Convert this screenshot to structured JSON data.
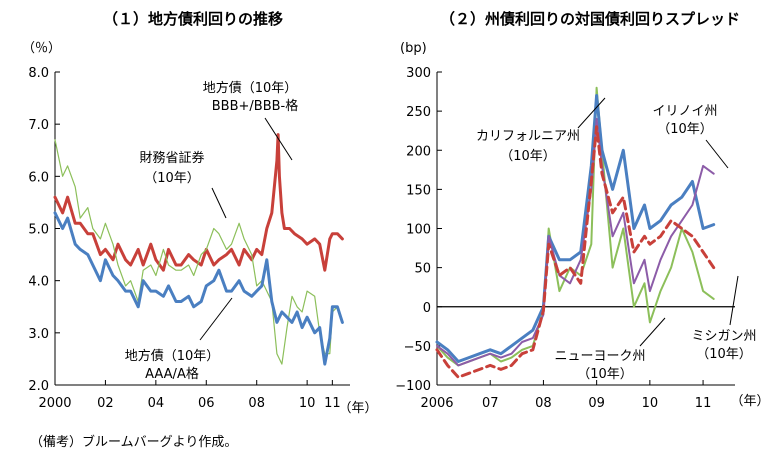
{
  "note": "（備考）ブルームバーグより作成。",
  "chart_data": [
    {
      "type": "line",
      "title": "（１）地方債利回りの推移",
      "ylabel": "（％）",
      "xunit": "（年）",
      "ylim": [
        2.0,
        8.0
      ],
      "xlim": [
        2000.0,
        2011.7
      ],
      "yticks": [
        "2.0",
        "3.0",
        "4.0",
        "5.0",
        "6.0",
        "7.0",
        "8.0"
      ],
      "xticks": [
        {
          "value": 2000,
          "label": "2000"
        },
        {
          "value": 2002,
          "label": "02"
        },
        {
          "value": 2004,
          "label": "04"
        },
        {
          "value": 2006,
          "label": "06"
        },
        {
          "value": 2008,
          "label": "08"
        },
        {
          "value": 2010,
          "label": "10"
        },
        {
          "value": 2011,
          "label": "11"
        }
      ],
      "grid": false,
      "series": [
        {
          "name": "地方債（10年）BBB+/BBB-格",
          "color": "#c8403a",
          "width": 3,
          "x": [
            2000.0,
            2000.3,
            2000.5,
            2000.8,
            2001.0,
            2001.3,
            2001.5,
            2001.8,
            2002.0,
            2002.3,
            2002.5,
            2002.8,
            2003.0,
            2003.3,
            2003.5,
            2003.8,
            2004.0,
            2004.3,
            2004.5,
            2004.8,
            2005.0,
            2005.3,
            2005.5,
            2005.8,
            2006.0,
            2006.3,
            2006.5,
            2006.8,
            2007.0,
            2007.3,
            2007.5,
            2007.8,
            2008.0,
            2008.2,
            2008.4,
            2008.6,
            2008.8,
            2008.85,
            2008.9,
            2009.0,
            2009.1,
            2009.3,
            2009.5,
            2009.8,
            2010.0,
            2010.3,
            2010.5,
            2010.7,
            2010.9,
            2011.0,
            2011.2,
            2011.4
          ],
          "y": [
            5.6,
            5.3,
            5.6,
            5.1,
            5.1,
            4.9,
            4.9,
            4.5,
            4.6,
            4.4,
            4.7,
            4.4,
            4.3,
            4.6,
            4.3,
            4.7,
            4.4,
            4.2,
            4.6,
            4.3,
            4.3,
            4.5,
            4.4,
            4.3,
            4.6,
            4.3,
            4.4,
            4.5,
            4.6,
            4.3,
            4.6,
            4.4,
            4.6,
            4.5,
            5.0,
            5.3,
            6.3,
            6.8,
            6.0,
            5.3,
            5.0,
            5.0,
            4.9,
            4.8,
            4.7,
            4.8,
            4.7,
            4.2,
            4.8,
            4.9,
            4.9,
            4.8
          ]
        },
        {
          "name": "財務省証券（10年）",
          "color": "#8cbf5a",
          "width": 1.2,
          "x": [
            2000.0,
            2000.3,
            2000.5,
            2000.8,
            2001.0,
            2001.3,
            2001.5,
            2001.8,
            2002.0,
            2002.3,
            2002.5,
            2002.8,
            2003.0,
            2003.3,
            2003.5,
            2003.8,
            2004.0,
            2004.3,
            2004.5,
            2004.8,
            2005.0,
            2005.3,
            2005.5,
            2005.8,
            2006.0,
            2006.3,
            2006.5,
            2006.8,
            2007.0,
            2007.3,
            2007.5,
            2007.8,
            2008.0,
            2008.2,
            2008.4,
            2008.6,
            2008.8,
            2009.0,
            2009.2,
            2009.4,
            2009.6,
            2009.8,
            2010.0,
            2010.3,
            2010.5,
            2010.7,
            2010.9,
            2011.0,
            2011.2,
            2011.4
          ],
          "y": [
            6.7,
            6.0,
            6.2,
            5.8,
            5.2,
            5.4,
            5.0,
            4.8,
            5.1,
            4.7,
            4.3,
            3.9,
            4.0,
            3.6,
            4.2,
            4.3,
            4.1,
            4.6,
            4.3,
            4.2,
            4.2,
            4.3,
            4.1,
            4.5,
            4.6,
            5.0,
            4.9,
            4.6,
            4.7,
            5.1,
            4.8,
            4.5,
            3.9,
            4.0,
            3.8,
            3.6,
            2.6,
            2.4,
            3.1,
            3.7,
            3.5,
            3.4,
            3.8,
            3.7,
            3.0,
            2.6,
            2.6,
            3.4,
            3.5,
            3.2
          ]
        },
        {
          "name": "地方債（10年）AAA/A格",
          "color": "#4a7fc1",
          "width": 3,
          "x": [
            2000.0,
            2000.3,
            2000.5,
            2000.8,
            2001.0,
            2001.3,
            2001.5,
            2001.8,
            2002.0,
            2002.3,
            2002.5,
            2002.8,
            2003.0,
            2003.3,
            2003.5,
            2003.8,
            2004.0,
            2004.3,
            2004.5,
            2004.8,
            2005.0,
            2005.3,
            2005.5,
            2005.8,
            2006.0,
            2006.3,
            2006.5,
            2006.8,
            2007.0,
            2007.3,
            2007.5,
            2007.8,
            2008.0,
            2008.2,
            2008.4,
            2008.6,
            2008.8,
            2009.0,
            2009.2,
            2009.4,
            2009.6,
            2009.8,
            2010.0,
            2010.3,
            2010.5,
            2010.7,
            2010.9,
            2011.0,
            2011.2,
            2011.4
          ],
          "y": [
            5.3,
            5.0,
            5.2,
            4.7,
            4.6,
            4.5,
            4.3,
            4.0,
            4.4,
            4.1,
            4.0,
            3.8,
            3.8,
            3.5,
            4.0,
            3.8,
            3.8,
            3.7,
            3.9,
            3.6,
            3.6,
            3.7,
            3.5,
            3.6,
            3.9,
            4.0,
            4.2,
            3.8,
            3.8,
            4.0,
            3.8,
            3.7,
            3.8,
            3.9,
            4.4,
            3.6,
            3.2,
            3.4,
            3.3,
            3.2,
            3.4,
            3.1,
            3.3,
            3.0,
            3.1,
            2.4,
            2.9,
            3.5,
            3.5,
            3.2
          ]
        }
      ],
      "annotations": [
        {
          "text": "地方債（10年）",
          "text2": "BBB+/BBB-格"
        },
        {
          "text": "財務省証券",
          "text2": "（10年）"
        },
        {
          "text": "地方債（10年）",
          "text2": "AAA/A格"
        }
      ]
    },
    {
      "type": "line",
      "title": "（２）州債利回りの対国債利回りスプレッド",
      "ylabel": "(bp)",
      "xunit": "（年）",
      "ylim": [
        -100,
        300
      ],
      "xlim": [
        2006.0,
        2011.6
      ],
      "yticks": [
        "−100",
        "−50",
        "0",
        "50",
        "100",
        "150",
        "200",
        "250",
        "300"
      ],
      "xticks": [
        {
          "value": 2006,
          "label": "2006"
        },
        {
          "value": 2007,
          "label": "07"
        },
        {
          "value": 2008,
          "label": "08"
        },
        {
          "value": 2009,
          "label": "09"
        },
        {
          "value": 2010,
          "label": "10"
        },
        {
          "value": 2011,
          "label": "11"
        }
      ],
      "zero_line": true,
      "grid": false,
      "series": [
        {
          "name": "ニューヨーク州（10年）",
          "color": "#8cbf5a",
          "width": 2,
          "x": [
            2006.0,
            2006.2,
            2006.4,
            2006.6,
            2006.8,
            2007.0,
            2007.2,
            2007.4,
            2007.6,
            2007.8,
            2008.0,
            2008.1,
            2008.3,
            2008.5,
            2008.7,
            2008.9,
            2009.0,
            2009.1,
            2009.3,
            2009.5,
            2009.7,
            2009.9,
            2010.0,
            2010.2,
            2010.4,
            2010.6,
            2010.8,
            2011.0,
            2011.2
          ],
          "y": [
            -50,
            -65,
            -75,
            -70,
            -65,
            -60,
            -70,
            -65,
            -55,
            -50,
            -5,
            100,
            20,
            50,
            40,
            80,
            280,
            200,
            50,
            100,
            0,
            30,
            -20,
            20,
            50,
            100,
            70,
            20,
            10
          ]
        },
        {
          "name": "カリフォルニア州（10年）",
          "color": "#4a7fc1",
          "width": 3,
          "x": [
            2006.0,
            2006.2,
            2006.4,
            2006.6,
            2006.8,
            2007.0,
            2007.2,
            2007.4,
            2007.6,
            2007.8,
            2008.0,
            2008.1,
            2008.3,
            2008.5,
            2008.7,
            2008.9,
            2009.0,
            2009.1,
            2009.3,
            2009.5,
            2009.7,
            2009.9,
            2010.0,
            2010.2,
            2010.4,
            2010.6,
            2010.8,
            2011.0,
            2011.2
          ],
          "y": [
            -45,
            -55,
            -70,
            -65,
            -60,
            -55,
            -60,
            -50,
            -40,
            -30,
            0,
            90,
            60,
            60,
            70,
            180,
            270,
            200,
            150,
            200,
            100,
            130,
            100,
            110,
            130,
            140,
            160,
            100,
            105
          ]
        },
        {
          "name": "イリノイ州（10年）",
          "color": "#8c5ca8",
          "width": 2,
          "x": [
            2006.0,
            2006.2,
            2006.4,
            2006.6,
            2006.8,
            2007.0,
            2007.2,
            2007.4,
            2007.6,
            2007.8,
            2008.0,
            2008.1,
            2008.3,
            2008.5,
            2008.7,
            2008.9,
            2009.0,
            2009.1,
            2009.3,
            2009.5,
            2009.7,
            2009.9,
            2010.0,
            2010.2,
            2010.4,
            2010.6,
            2010.8,
            2011.0,
            2011.2
          ],
          "y": [
            -50,
            -60,
            -75,
            -70,
            -65,
            -60,
            -65,
            -60,
            -45,
            -40,
            -10,
            90,
            40,
            30,
            60,
            150,
            240,
            180,
            90,
            120,
            30,
            60,
            20,
            60,
            90,
            110,
            130,
            180,
            170
          ]
        },
        {
          "name": "ミシガン州（10年）",
          "color": "#c8403a",
          "width": 3,
          "dash": "8,5",
          "x": [
            2006.0,
            2006.2,
            2006.4,
            2006.6,
            2006.8,
            2007.0,
            2007.2,
            2007.4,
            2007.6,
            2007.8,
            2008.0,
            2008.1,
            2008.3,
            2008.5,
            2008.7,
            2008.9,
            2009.0,
            2009.1,
            2009.3,
            2009.5,
            2009.7,
            2009.9,
            2010.0,
            2010.2,
            2010.4,
            2010.6,
            2010.8,
            2011.0,
            2011.2
          ],
          "y": [
            -55,
            -75,
            -90,
            -85,
            -80,
            -75,
            -80,
            -75,
            -60,
            -55,
            -5,
            80,
            40,
            50,
            30,
            160,
            230,
            170,
            120,
            140,
            70,
            90,
            80,
            90,
            110,
            100,
            90,
            70,
            50
          ]
        }
      ],
      "annotations": [
        {
          "text": "カリフォルニア州",
          "text2": "（10年）"
        },
        {
          "text": "イリノイ州",
          "text2": "（10年）"
        },
        {
          "text": "ニューヨーク州",
          "text2": "（10年）"
        },
        {
          "text": "ミシガン州",
          "text2": "（10年）"
        }
      ]
    }
  ]
}
